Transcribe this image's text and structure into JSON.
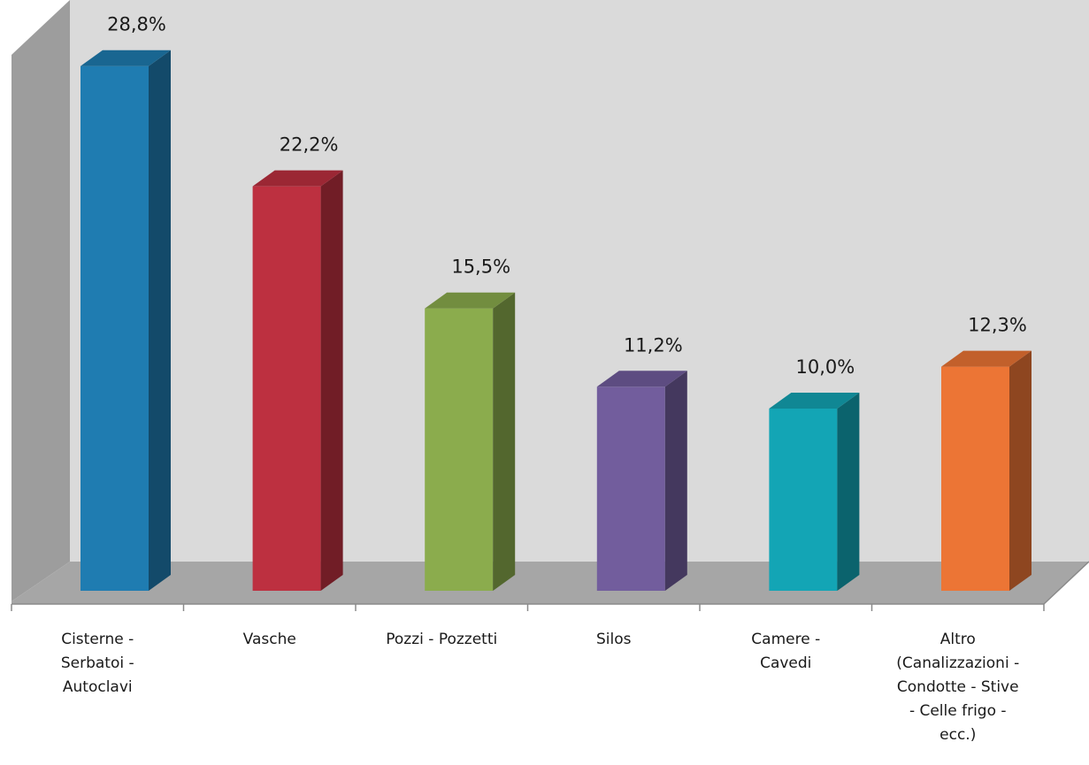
{
  "chart_data": {
    "type": "bar",
    "categories": [
      [
        "Cisterne -",
        "Serbatoi -",
        "Autoclavi"
      ],
      [
        "Vasche"
      ],
      [
        "Pozzi - Pozzetti"
      ],
      [
        "Silos"
      ],
      [
        "Camere -",
        "Cavedi"
      ],
      [
        "Altro",
        "(Canalizzazioni -",
        "Condotte - Stive",
        "- Celle frigo -",
        "ecc.)"
      ]
    ],
    "values": [
      28.8,
      22.2,
      15.5,
      11.2,
      10.0,
      12.3
    ],
    "value_labels": [
      "28,8%",
      "22,2%",
      "15,5%",
      "11,2%",
      "10,0%",
      "12,3%"
    ],
    "colors": [
      "#1f7cb1",
      "#bd3040",
      "#8bac4d",
      "#725d9d",
      "#13a5b5",
      "#ec7535"
    ],
    "title": "",
    "xlabel": "",
    "ylabel": "",
    "ylim": [
      0,
      30
    ],
    "grid": false,
    "legend": "none",
    "style": "3d-column"
  }
}
